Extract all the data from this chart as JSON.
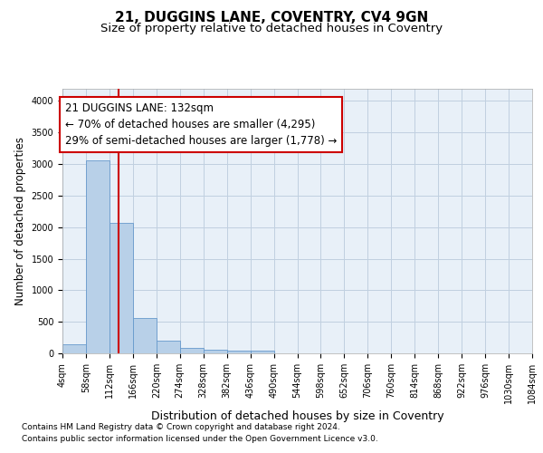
{
  "title": "21, DUGGINS LANE, COVENTRY, CV4 9GN",
  "subtitle": "Size of property relative to detached houses in Coventry",
  "xlabel": "Distribution of detached houses by size in Coventry",
  "ylabel": "Number of detached properties",
  "bar_edges": [
    4,
    58,
    112,
    166,
    220,
    274,
    328,
    382,
    436,
    490,
    544,
    598,
    652,
    706,
    760,
    814,
    868,
    922,
    976,
    1030,
    1084
  ],
  "bar_heights": [
    140,
    3060,
    2070,
    560,
    200,
    80,
    55,
    45,
    45,
    0,
    0,
    0,
    0,
    0,
    0,
    0,
    0,
    0,
    0,
    0
  ],
  "bar_color": "#b8d0e8",
  "bar_edgecolor": "#6699cc",
  "property_line_x": 132,
  "property_line_color": "#cc0000",
  "annotation_line1": "21 DUGGINS LANE: 132sqm",
  "annotation_line2": "← 70% of detached houses are smaller (4,295)",
  "annotation_line3": "29% of semi-detached houses are larger (1,778) →",
  "annotation_box_edgecolor": "#cc0000",
  "annotation_box_facecolor": "#ffffff",
  "ylim": [
    0,
    4200
  ],
  "yticks": [
    0,
    500,
    1000,
    1500,
    2000,
    2500,
    3000,
    3500,
    4000
  ],
  "grid_color": "#c0d0e0",
  "background_color": "#ffffff",
  "plot_background": "#e8f0f8",
  "footer_line1": "Contains HM Land Registry data © Crown copyright and database right 2024.",
  "footer_line2": "Contains public sector information licensed under the Open Government Licence v3.0.",
  "title_fontsize": 11,
  "subtitle_fontsize": 9.5,
  "tick_label_fontsize": 7,
  "ylabel_fontsize": 8.5,
  "xlabel_fontsize": 9,
  "footer_fontsize": 6.5,
  "annotation_fontsize": 8.5
}
